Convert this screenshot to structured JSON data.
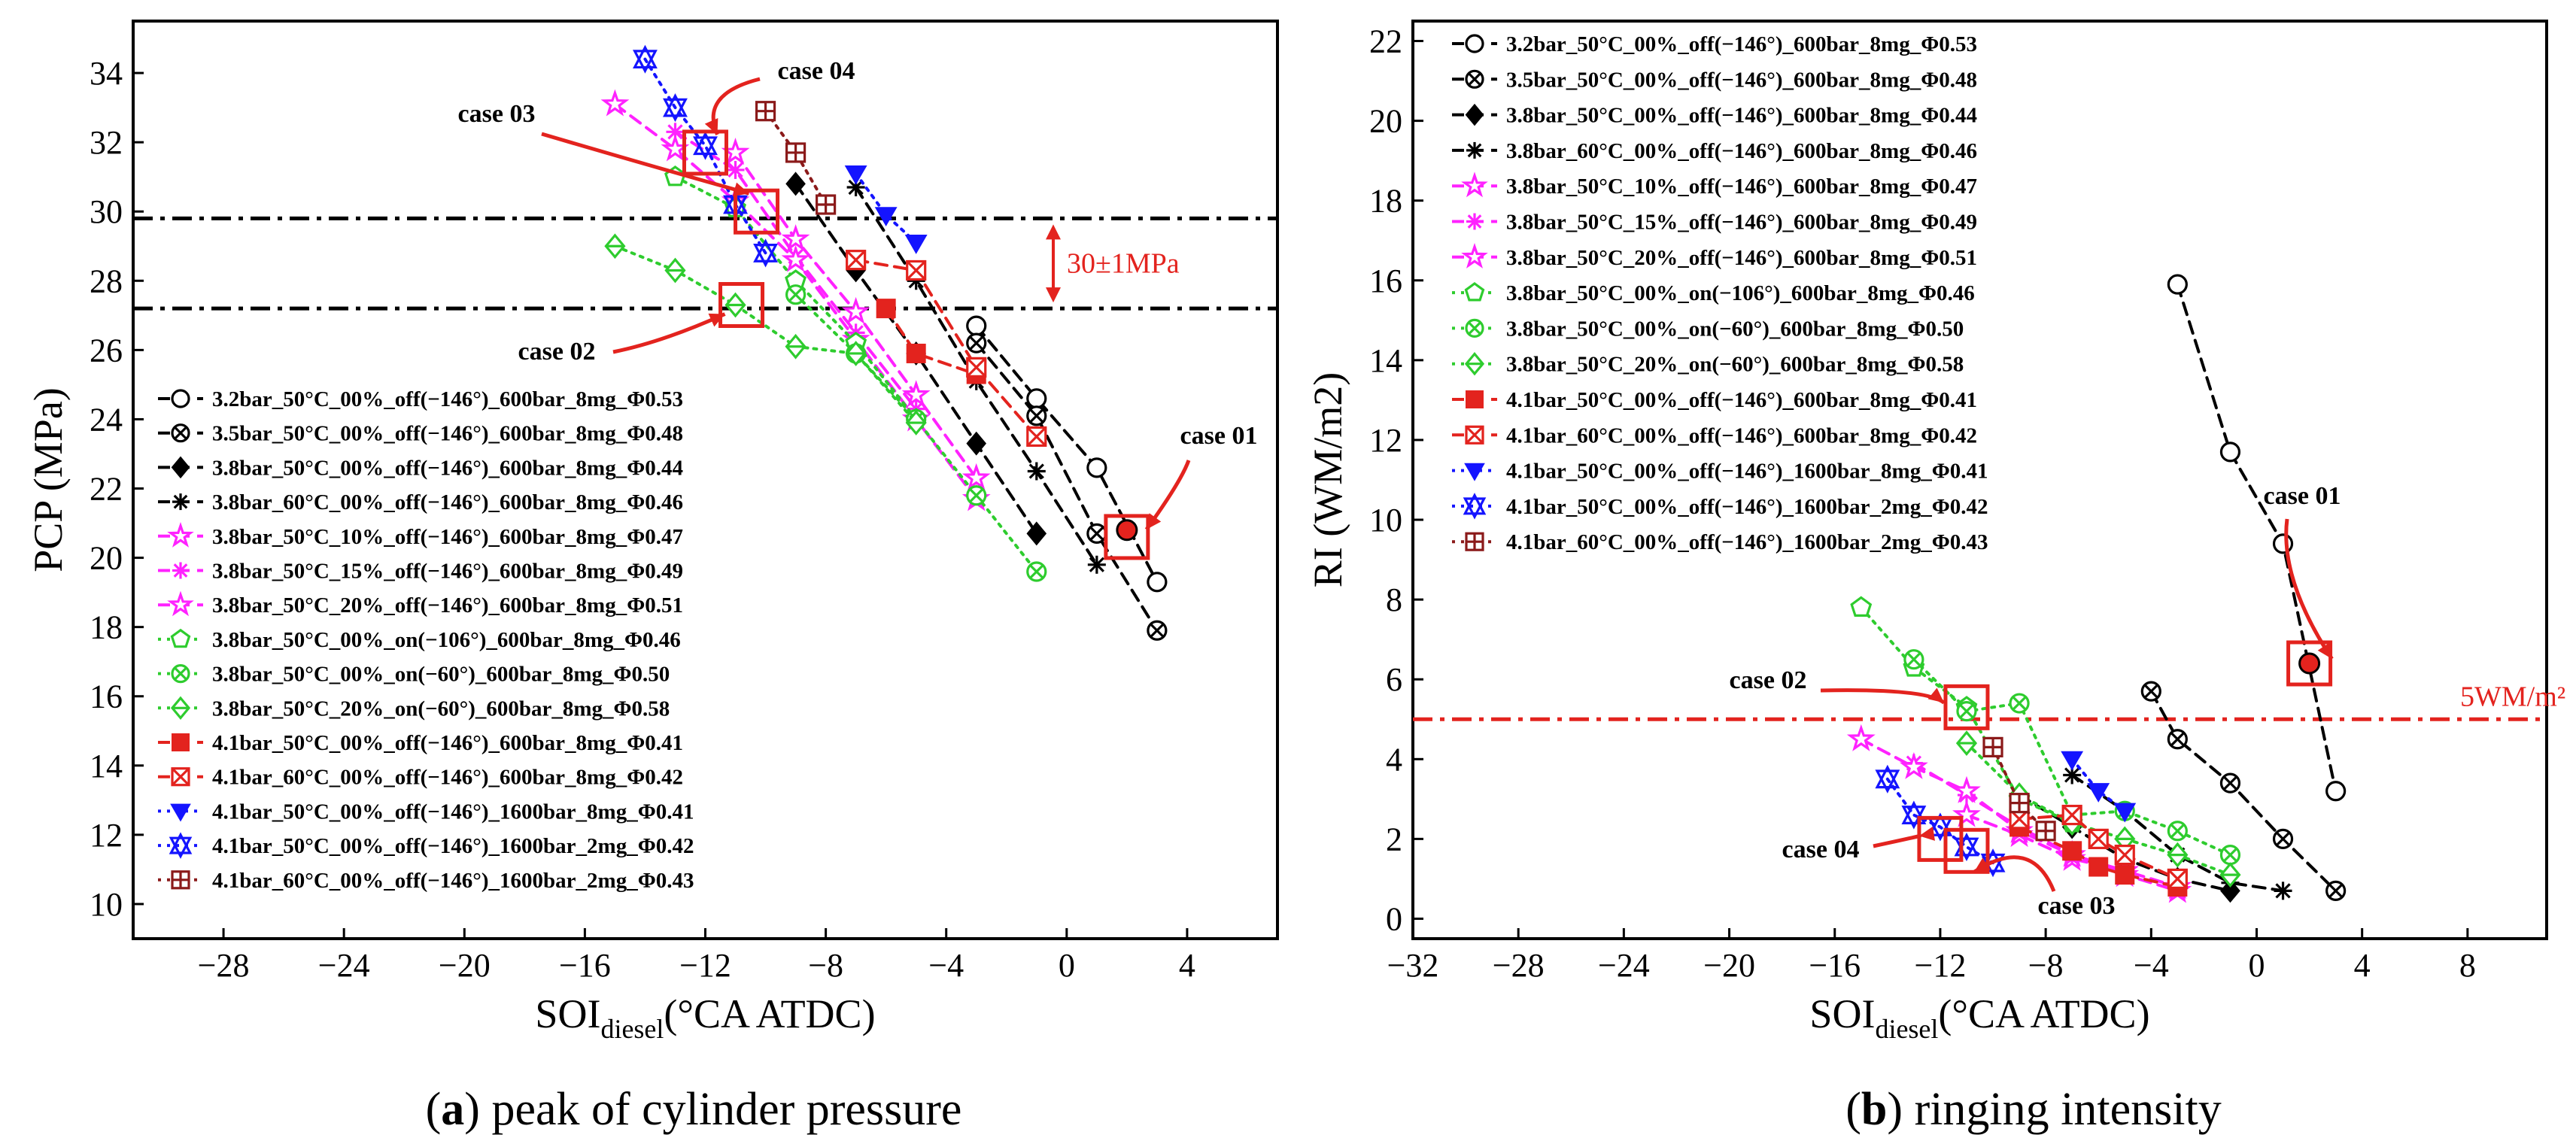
{
  "colors": {
    "red": "#e3231e",
    "black": "#000000",
    "magenta": "#ff22ff",
    "green": "#2ecc2e",
    "blue": "#1414ff",
    "darkred": "#8b1a1a"
  },
  "captions": [
    {
      "letter": "a",
      "text": " peak of cylinder pressure"
    },
    {
      "letter": "b",
      "text": " ringing intensity"
    }
  ],
  "chart_data": [
    {
      "type": "scatter",
      "title": "",
      "xlabel": {
        "main": "SOI",
        "sub": "diesel",
        "rest": "(°CA ATDC)"
      },
      "ylabel": "PCP (MPa)",
      "xlim": [
        -31,
        7
      ],
      "ylim": [
        9,
        35.5
      ],
      "xticks": [
        -28,
        -24,
        -20,
        -16,
        -12,
        -8,
        -4,
        0,
        4
      ],
      "xticklabels": [
        "−28",
        "−24",
        "−20",
        "−16",
        "−12",
        "−8",
        "−4",
        "0",
        "4"
      ],
      "yticks": [
        10,
        12,
        14,
        16,
        18,
        20,
        22,
        24,
        26,
        28,
        30,
        32,
        34
      ],
      "yticklabels": [
        "10",
        "12",
        "14",
        "16",
        "18",
        "20",
        "22",
        "24",
        "26",
        "28",
        "30",
        "32",
        "34"
      ],
      "legend_position": "bottom-left",
      "series": [
        {
          "name": "3.2bar_50°C_00%_off(−146°)_600bar_8mg_Φ0.53",
          "color": "#000000",
          "marker": "circle",
          "line": "dash",
          "x": [
            -3,
            -1,
            1,
            3
          ],
          "y": [
            26.7,
            24.6,
            22.6,
            19.3
          ]
        },
        {
          "name": "3.5bar_50°C_00%_off(−146°)_600bar_8mg_Φ0.48",
          "color": "#000000",
          "marker": "circle-x",
          "line": "dash",
          "x": [
            -3,
            -1,
            1,
            3
          ],
          "y": [
            26.2,
            24.1,
            20.7,
            17.9
          ]
        },
        {
          "name": "3.8bar_50°C_00%_off(−146°)_600bar_8mg_Φ0.44",
          "color": "#000000",
          "marker": "diamond-filled",
          "line": "dash",
          "x": [
            -9,
            -7,
            -5,
            -3,
            -1
          ],
          "y": [
            30.8,
            28.3,
            25.9,
            23.3,
            20.7
          ]
        },
        {
          "name": "3.8bar_60°C_00%_off(−146°)_600bar_8mg_Φ0.46",
          "color": "#000000",
          "marker": "asterisk",
          "line": "dash",
          "x": [
            -7,
            -5,
            -3,
            -1,
            1
          ],
          "y": [
            30.7,
            28.0,
            25.1,
            22.5,
            19.8
          ]
        },
        {
          "name": "3.8bar_50°C_10%_off(−146°)_600bar_8mg_Φ0.47",
          "color": "#ff22ff",
          "marker": "star",
          "line": "dash",
          "x": [
            -11,
            -9,
            -7,
            -5,
            -3
          ],
          "y": [
            31.7,
            29.2,
            27.1,
            24.7,
            22.3
          ]
        },
        {
          "name": "3.8bar_50°C_15%_off(−146°)_600bar_8mg_Φ0.49",
          "color": "#ff22ff",
          "marker": "asterisk",
          "line": "dash",
          "x": [
            -13,
            -11,
            -9,
            -7,
            -5
          ],
          "y": [
            32.3,
            31.2,
            28.7,
            26.5,
            24.3
          ]
        },
        {
          "name": "3.8bar_50°C_20%_off(−146°)_600bar_8mg_Φ0.51",
          "color": "#ff22ff",
          "marker": "star",
          "line": "dash",
          "x": [
            -15,
            -13,
            -11,
            -9,
            -7,
            -5,
            -3
          ],
          "y": [
            33.1,
            31.8,
            30.3,
            28.6,
            26.3,
            24.0,
            21.7
          ]
        },
        {
          "name": "3.8bar_50°C_00%_on(−106°)_600bar_8mg_Φ0.46",
          "color": "#2ecc2e",
          "marker": "pentagon",
          "line": "dot",
          "x": [
            -13,
            -11,
            -9,
            -7,
            -5
          ],
          "y": [
            31.0,
            30.1,
            28.0,
            26.2,
            24.0
          ]
        },
        {
          "name": "3.8bar_50°C_00%_on(−60°)_600bar_8mg_Φ0.50",
          "color": "#2ecc2e",
          "marker": "circle-x",
          "line": "dot",
          "x": [
            -9,
            -7,
            -5,
            -3,
            -1
          ],
          "y": [
            27.6,
            25.9,
            24.0,
            21.8,
            19.6
          ]
        },
        {
          "name": "3.8bar_50°C_20%_on(−60°)_600bar_8mg_Φ0.58",
          "color": "#2ecc2e",
          "marker": "diamond",
          "line": "dot",
          "x": [
            -15,
            -13,
            -11,
            -9,
            -7,
            -5
          ],
          "y": [
            29.0,
            28.3,
            27.3,
            26.1,
            25.9,
            23.9
          ]
        },
        {
          "name": "4.1bar_50°C_00%_off(−146°)_600bar_8mg_Φ0.41",
          "color": "#e3231e",
          "marker": "square-filled",
          "line": "dash",
          "x": [
            -6,
            -5,
            -3
          ],
          "y": [
            27.2,
            25.9,
            25.3
          ]
        },
        {
          "name": "4.1bar_60°C_00%_off(−146°)_600bar_8mg_Φ0.42",
          "color": "#e3231e",
          "marker": "square-x",
          "line": "dash",
          "x": [
            -7,
            -5,
            -3,
            -1
          ],
          "y": [
            28.6,
            28.3,
            25.5,
            23.5
          ]
        },
        {
          "name": "4.1bar_50°C_00%_off(−146°)_1600bar_8mg_Φ0.41",
          "color": "#1414ff",
          "marker": "triangle-down",
          "line": "dot",
          "x": [
            -7,
            -6,
            -5
          ],
          "y": [
            31.1,
            29.9,
            29.1
          ]
        },
        {
          "name": "4.1bar_50°C_00%_off(−146°)_1600bar_2mg_Φ0.42",
          "color": "#1414ff",
          "marker": "hourglass",
          "line": "dot",
          "x": [
            -14,
            -13,
            -12,
            -11,
            -10
          ],
          "y": [
            34.4,
            33.0,
            31.9,
            30.2,
            28.8
          ]
        },
        {
          "name": "4.1bar_60°C_00%_off(−146°)_1600bar_2mg_Φ0.43",
          "color": "#8b1a1a",
          "marker": "square-plus",
          "line": "dot",
          "x": [
            -10,
            -9,
            -8
          ],
          "y": [
            32.9,
            31.7,
            30.2
          ]
        }
      ],
      "highlight_point": {
        "x": 2,
        "y": 20.8
      },
      "hlines": [
        {
          "y": 29.8,
          "style": "dashdot"
        },
        {
          "y": 27.2,
          "style": "dashdot"
        }
      ],
      "band_label": "30±1MPa",
      "cases": [
        {
          "label": "case 01",
          "x": 2,
          "y": 20.6
        },
        {
          "label": "case 02",
          "x": -10.8,
          "y": 27.3
        },
        {
          "label": "case 03",
          "x": -10.3,
          "y": 30.0
        },
        {
          "label": "case 04",
          "x": -12,
          "y": 31.7
        }
      ]
    },
    {
      "type": "scatter",
      "title": "",
      "xlabel": {
        "main": "SOI",
        "sub": "diesel",
        "rest": "(°CA ATDC)"
      },
      "ylabel": "RI (WM/m2)",
      "xlim": [
        -32,
        11
      ],
      "ylim": [
        -0.5,
        22.5
      ],
      "xticks": [
        -32,
        -28,
        -24,
        -20,
        -16,
        -12,
        -8,
        -4,
        0,
        4,
        8
      ],
      "xticklabels": [
        "−32",
        "−28",
        "−24",
        "−20",
        "−16",
        "−12",
        "−8",
        "−4",
        "0",
        "4",
        "8"
      ],
      "yticks": [
        0,
        2,
        4,
        6,
        8,
        10,
        12,
        14,
        16,
        18,
        20,
        22
      ],
      "yticklabels": [
        "0",
        "2",
        "4",
        "6",
        "8",
        "10",
        "12",
        "14",
        "16",
        "18",
        "20",
        "22"
      ],
      "legend_position": "top-left",
      "series": [
        {
          "name": "3.2bar_50°C_00%_off(−146°)_600bar_8mg_Φ0.53",
          "color": "#000000",
          "marker": "circle",
          "line": "dash",
          "x": [
            -3,
            -1,
            1,
            3
          ],
          "y": [
            15.9,
            11.7,
            9.4,
            3.2
          ]
        },
        {
          "name": "3.5bar_50°C_00%_off(−146°)_600bar_8mg_Φ0.48",
          "color": "#000000",
          "marker": "circle-x",
          "line": "dash",
          "x": [
            -4,
            -3,
            -1,
            1,
            3
          ],
          "y": [
            5.7,
            4.5,
            3.4,
            2.0,
            0.7
          ]
        },
        {
          "name": "3.8bar_50°C_00%_off(−146°)_600bar_8mg_Φ0.44",
          "color": "#000000",
          "marker": "diamond-filled",
          "line": "dash",
          "x": [
            -9,
            -7,
            -5,
            -3,
            -1
          ],
          "y": [
            3.1,
            2.3,
            1.5,
            1.0,
            0.7
          ]
        },
        {
          "name": "3.8bar_60°C_00%_off(−146°)_600bar_8mg_Φ0.46",
          "color": "#000000",
          "marker": "asterisk",
          "line": "dash",
          "x": [
            -7,
            -5,
            -3,
            -1,
            1
          ],
          "y": [
            3.6,
            2.7,
            1.6,
            0.9,
            0.7
          ]
        },
        {
          "name": "3.8bar_50°C_10%_off(−146°)_600bar_8mg_Φ0.47",
          "color": "#ff22ff",
          "marker": "star",
          "line": "dash",
          "x": [
            -11,
            -9,
            -7,
            -5,
            -3
          ],
          "y": [
            2.6,
            2.1,
            1.5,
            1.2,
            0.8
          ]
        },
        {
          "name": "3.8bar_50°C_15%_off(−146°)_600bar_8mg_Φ0.49",
          "color": "#ff22ff",
          "marker": "asterisk",
          "line": "dash",
          "x": [
            -13,
            -11,
            -9,
            -7,
            -5
          ],
          "y": [
            3.9,
            3.1,
            2.3,
            1.6,
            1.2
          ]
        },
        {
          "name": "3.8bar_50°C_20%_off(−146°)_600bar_8mg_Φ0.51",
          "color": "#ff22ff",
          "marker": "star",
          "line": "dash",
          "x": [
            -15,
            -13,
            -11,
            -9,
            -7,
            -5,
            -3
          ],
          "y": [
            4.5,
            3.8,
            3.2,
            2.2,
            1.6,
            1.1,
            0.7
          ]
        },
        {
          "name": "3.8bar_50°C_00%_on(−106°)_600bar_8mg_Φ0.46",
          "color": "#2ecc2e",
          "marker": "pentagon",
          "line": "dot",
          "x": [
            -15,
            -13,
            -11,
            -9,
            -7
          ],
          "y": [
            7.8,
            6.3,
            5.3,
            3.0,
            2.4
          ]
        },
        {
          "name": "3.8bar_50°C_00%_on(−60°)_600bar_8mg_Φ0.50",
          "color": "#2ecc2e",
          "marker": "circle-x",
          "line": "dot",
          "x": [
            -13,
            -11,
            -9,
            -7,
            -5,
            -3,
            -1
          ],
          "y": [
            6.5,
            5.2,
            5.4,
            2.6,
            2.7,
            2.2,
            1.6
          ]
        },
        {
          "name": "3.8bar_50°C_20%_on(−60°)_600bar_8mg_Φ0.58",
          "color": "#2ecc2e",
          "marker": "diamond",
          "line": "dot",
          "x": [
            -11,
            -9,
            -7,
            -5,
            -3,
            -1
          ],
          "y": [
            4.4,
            3.1,
            2.4,
            2.0,
            1.6,
            1.1
          ]
        },
        {
          "name": "4.1bar_50°C_00%_off(−146°)_600bar_8mg_Φ0.41",
          "color": "#e3231e",
          "marker": "square-filled",
          "line": "dash",
          "x": [
            -9,
            -7,
            -6,
            -5,
            -3
          ],
          "y": [
            2.3,
            1.7,
            1.3,
            1.1,
            0.8
          ]
        },
        {
          "name": "4.1bar_60°C_00%_off(−146°)_600bar_8mg_Φ0.42",
          "color": "#e3231e",
          "marker": "square-x",
          "line": "dash",
          "x": [
            -9,
            -7,
            -6,
            -5,
            -3
          ],
          "y": [
            2.5,
            2.6,
            2.0,
            1.6,
            1.0
          ]
        },
        {
          "name": "4.1bar_50°C_00%_off(−146°)_1600bar_8mg_Φ0.41",
          "color": "#1414ff",
          "marker": "triangle-down",
          "line": "dot",
          "x": [
            -7,
            -6,
            -5
          ],
          "y": [
            4.0,
            3.2,
            2.7
          ]
        },
        {
          "name": "4.1bar_50°C_00%_off(−146°)_1600bar_2mg_Φ0.42",
          "color": "#1414ff",
          "marker": "hourglass",
          "line": "dot",
          "x": [
            -14,
            -13,
            -12,
            -11,
            -10
          ],
          "y": [
            3.5,
            2.6,
            2.3,
            1.8,
            1.4
          ]
        },
        {
          "name": "4.1bar_60°C_00%_off(−146°)_1600bar_2mg_Φ0.43",
          "color": "#8b1a1a",
          "marker": "square-plus",
          "line": "dot",
          "x": [
            -10,
            -9,
            -8
          ],
          "y": [
            4.3,
            2.9,
            2.2
          ]
        }
      ],
      "highlight_point": {
        "x": 2,
        "y": 6.4
      },
      "hlines": [
        {
          "y": 5.0,
          "style": "dashdot",
          "color": "#e3231e"
        }
      ],
      "hline_label": "5WM/m²",
      "cases": [
        {
          "label": "case 01",
          "x": 2,
          "y": 6.4
        },
        {
          "label": "case 02",
          "x": -11,
          "y": 5.3
        },
        {
          "label": "case 03",
          "x": -11,
          "y": 1.7
        },
        {
          "label": "case 04",
          "x": -12,
          "y": 2.0
        }
      ]
    }
  ]
}
